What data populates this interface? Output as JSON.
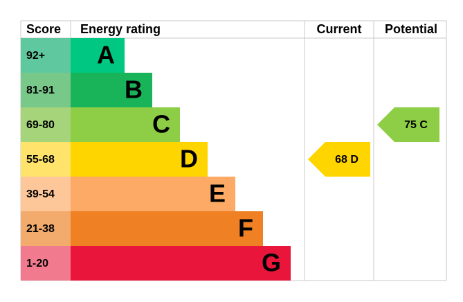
{
  "header": {
    "score": "Score",
    "rating": "Energy rating",
    "current": "Current",
    "potential": "Potential"
  },
  "bands": [
    {
      "score": "92+",
      "letter": "A",
      "score_color": "#5fc89e",
      "bar_color": "#00c781"
    },
    {
      "score": "81-91",
      "letter": "B",
      "score_color": "#78c88a",
      "bar_color": "#19b459"
    },
    {
      "score": "69-80",
      "letter": "C",
      "score_color": "#a5d47a",
      "bar_color": "#8dce46"
    },
    {
      "score": "55-68",
      "letter": "D",
      "score_color": "#ffe36a",
      "bar_color": "#ffd500"
    },
    {
      "score": "39-54",
      "letter": "E",
      "score_color": "#fdc79a",
      "bar_color": "#fcaa65"
    },
    {
      "score": "21-38",
      "letter": "F",
      "score_color": "#f3aa6d",
      "bar_color": "#ef8023"
    },
    {
      "score": "1-20",
      "letter": "G",
      "score_color": "#f27a8f",
      "bar_color": "#e9153b"
    }
  ],
  "current": {
    "score": 68,
    "band": "D"
  },
  "potential": {
    "score": 75,
    "band": "C"
  }
}
